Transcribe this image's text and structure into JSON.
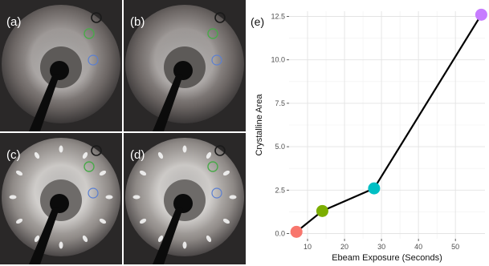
{
  "panels": [
    {
      "label": "(a)",
      "brightness": 0.42,
      "spots": false
    },
    {
      "label": "(b)",
      "brightness": 0.4,
      "spots": false
    },
    {
      "label": "(c)",
      "brightness": 0.62,
      "spots": true
    },
    {
      "label": "(d)",
      "brightness": 0.66,
      "spots": true
    }
  ],
  "colors": {
    "black_circle": "#1a1a1a",
    "green_circle": "#4aa84a",
    "blue_circle": "#5b7fd1"
  },
  "chart_data": {
    "panel_label": "(e)",
    "type": "line",
    "xlabel": "Ebeam Exposure (Seconds)",
    "ylabel": "Crystalline Area",
    "xlim": [
      5,
      58
    ],
    "ylim": [
      -0.3,
      12.8
    ],
    "xticks": [
      10,
      20,
      30,
      40,
      50
    ],
    "yticks": [
      {
        "value": 0,
        "label": "0.0"
      },
      {
        "value": 2.5,
        "label": "2.5"
      },
      {
        "value": 5,
        "label": "5.0"
      },
      {
        "value": 7.5,
        "label": "7.5"
      },
      {
        "value": 10,
        "label": "10.0"
      },
      {
        "value": 12.5,
        "label": "12.5"
      }
    ],
    "grid": true,
    "points": [
      {
        "x": 7,
        "y": 0.1,
        "color": "#f8766d"
      },
      {
        "x": 14,
        "y": 1.3,
        "color": "#7cae00"
      },
      {
        "x": 28,
        "y": 2.6,
        "color": "#00bfc4"
      },
      {
        "x": 57,
        "y": 12.6,
        "color": "#c77cff"
      }
    ],
    "line_color": "#000000"
  }
}
